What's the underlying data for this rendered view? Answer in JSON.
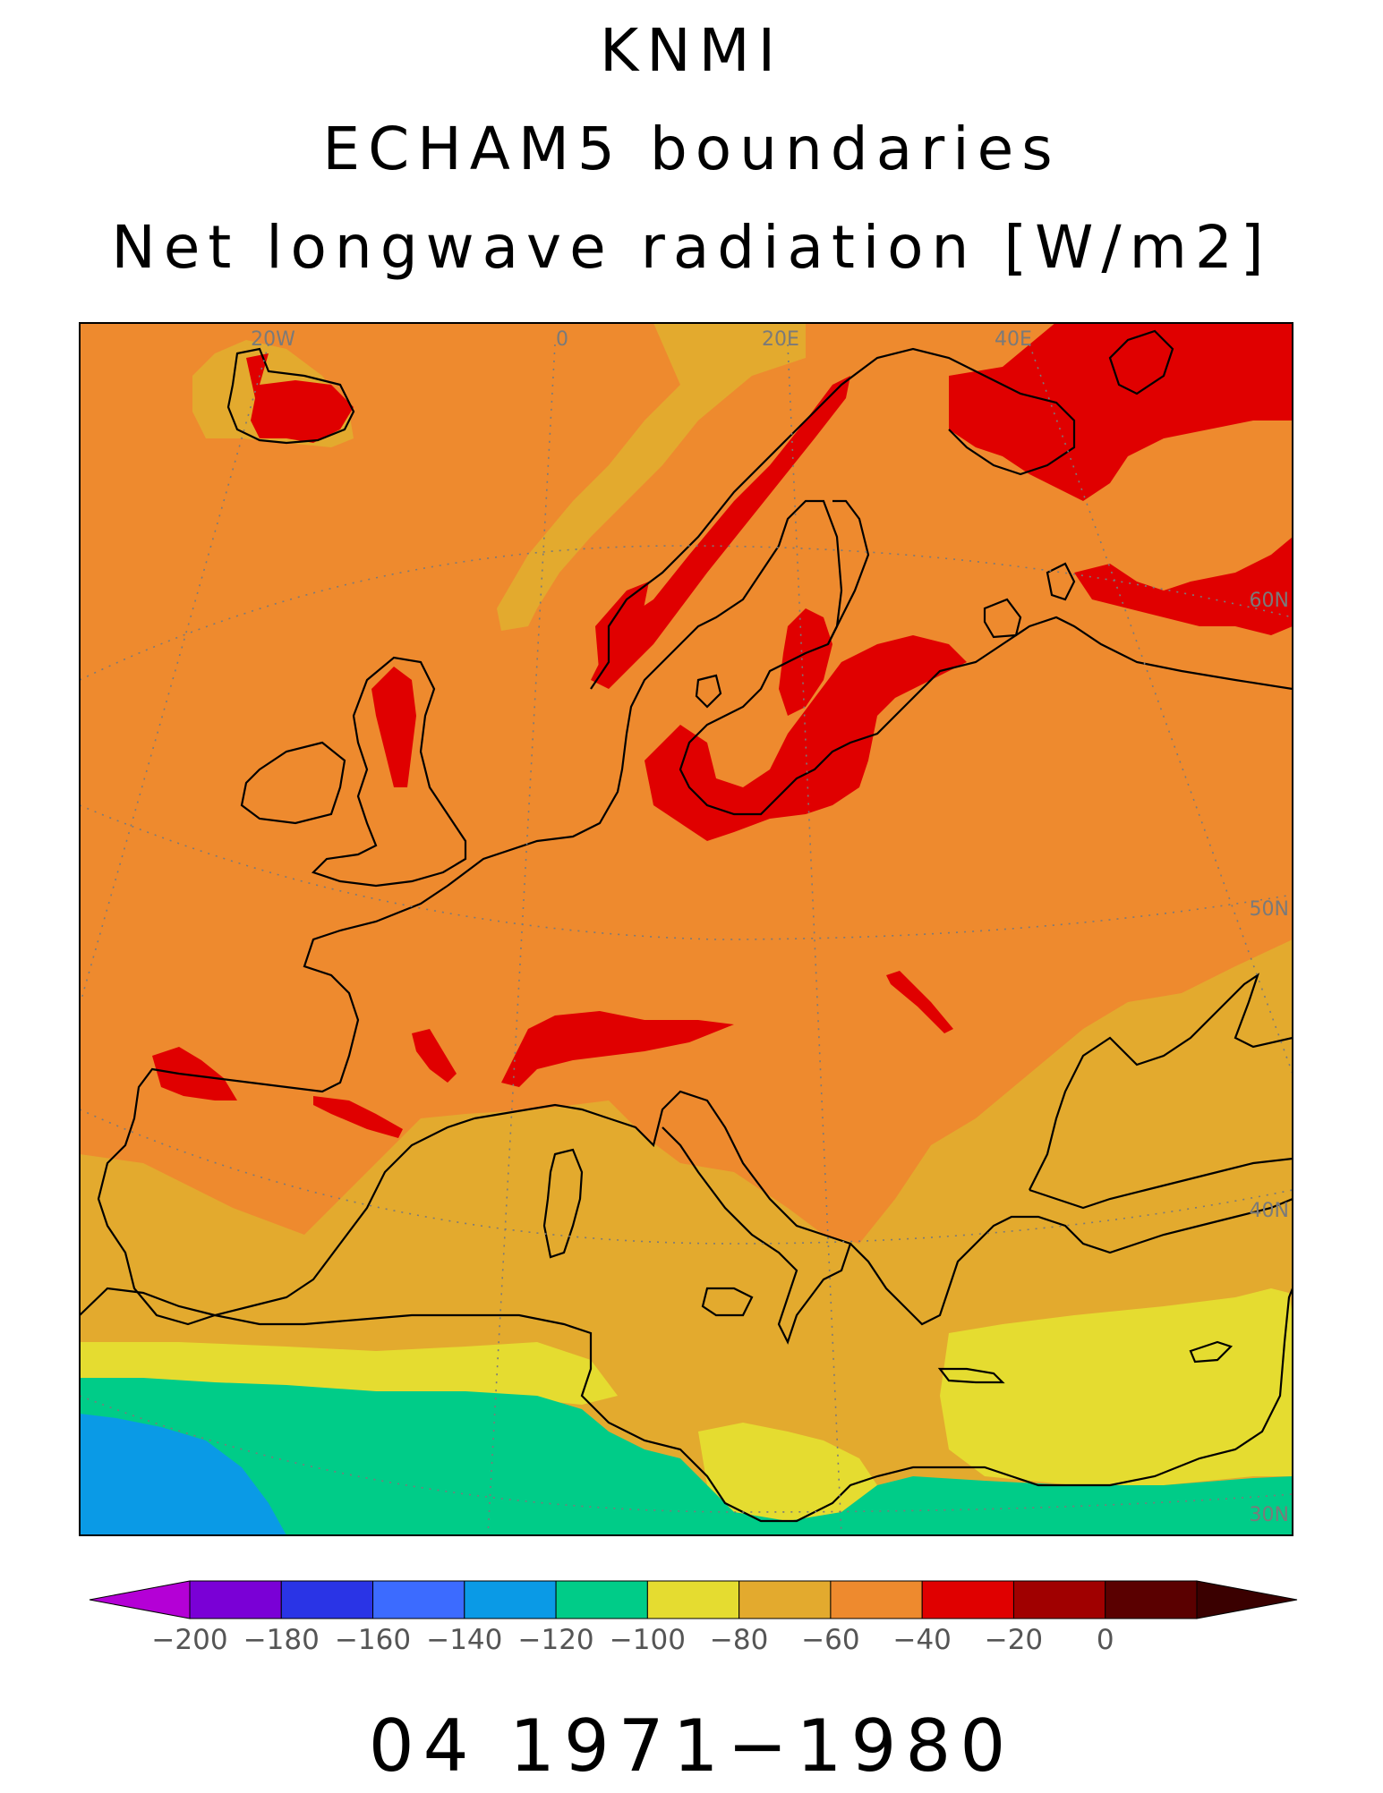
{
  "title": {
    "line1": "KNMI",
    "line2": "ECHAM5 boundaries",
    "line3": "Net longwave radiation [W/m2]"
  },
  "period": "04 1971−1980",
  "graticule_labels": {
    "lon": [
      "20W",
      "0",
      "20E",
      "40E"
    ],
    "lat": [
      "60N",
      "50N",
      "40N",
      "30N"
    ]
  },
  "colorbar": {
    "ticks": [
      "−200",
      "−180",
      "−160",
      "−140",
      "−120",
      "−100",
      "−80",
      "−60",
      "−40",
      "−20",
      "0"
    ],
    "colors": [
      "#7a00d6",
      "#2a34e6",
      "#3c6bff",
      "#0a9ae6",
      "#00cc88",
      "#e5dc30",
      "#e3aa2e",
      "#ee8a2e",
      "#e00000",
      "#a00000",
      "#5a0000"
    ],
    "under_color": "#b400d6",
    "over_color": "#3a0000"
  },
  "palette": {
    "coast": "#000000",
    "graticule": "#7a7a7a"
  }
}
